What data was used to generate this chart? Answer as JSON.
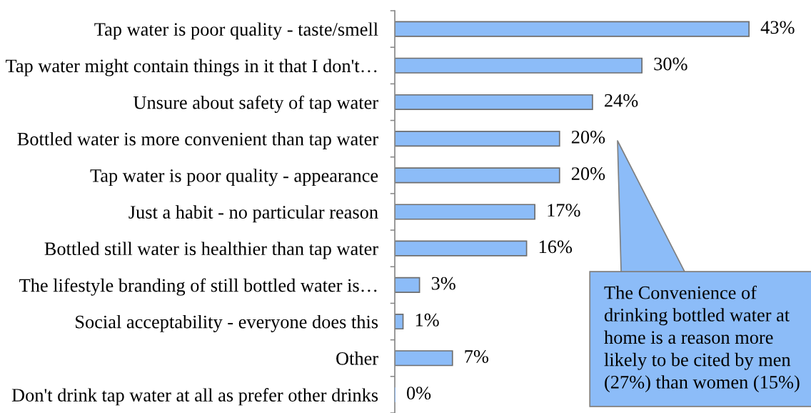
{
  "chart_data": {
    "type": "bar",
    "orientation": "horizontal",
    "categories": [
      "Tap water is poor quality - taste/smell",
      "Tap water might contain things in it that I don't…",
      "Unsure about safety of tap water",
      "Bottled water is more convenient than tap water",
      "Tap water is poor quality - appearance",
      "Just a habit - no particular reason",
      "Bottled still water is healthier than tap water",
      "The lifestyle branding of still bottled water is…",
      "Social acceptability - everyone does this",
      "Other",
      "Don't drink tap water at all as prefer other drinks"
    ],
    "values": [
      43,
      30,
      24,
      20,
      20,
      17,
      16,
      3,
      1,
      7,
      0
    ],
    "value_labels": [
      "43%",
      "30%",
      "24%",
      "20%",
      "20%",
      "17%",
      "16%",
      "3%",
      "1%",
      "7%",
      "0%"
    ],
    "color": "#8cbcf8",
    "tick_labels": "y",
    "annotations": [
      "The Convenience of\ndrinking bottled water at\nhome is a reason more\nlikely to be cited by men\n(27%) than women (15%)"
    ]
  }
}
